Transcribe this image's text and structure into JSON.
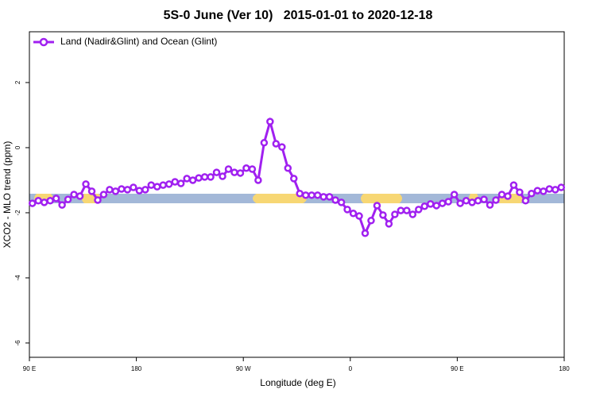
{
  "chart_data": {
    "type": "line",
    "title": "5S-0 June (Ver 10)   2015-01-01 to 2020-12-18",
    "x_label": "Longitude (deg E)",
    "y_label": "XCO2 - MLO trend (ppm)",
    "legend": "upper left",
    "x": [
      92.5,
      97.5,
      102.5,
      107.5,
      112.5,
      117.5,
      122.5,
      127.5,
      132.5,
      137.5,
      142.5,
      147.5,
      152.5,
      157.5,
      162.5,
      167.5,
      172.5,
      177.5,
      182.5,
      187.5,
      192.5,
      197.5,
      202.5,
      207.5,
      212.5,
      217.5,
      222.5,
      227.5,
      232.5,
      237.5,
      242.5,
      247.5,
      252.5,
      257.5,
      262.5,
      267.5,
      272.5,
      277.5,
      282.5,
      287.5,
      292.5,
      297.5,
      302.5,
      307.5,
      312.5,
      317.5,
      322.5,
      327.5,
      332.5,
      337.5,
      342.5,
      347.5,
      352.5,
      357.5,
      362.5,
      367.5,
      372.5,
      377.5,
      382.5,
      387.5,
      392.5,
      397.5,
      402.5,
      407.5,
      412.5,
      417.5,
      422.5,
      427.5,
      432.5,
      437.5,
      442.5,
      447.5,
      452.5,
      457.5,
      462.5,
      467.5,
      472.5,
      477.5,
      482.5,
      487.5,
      492.5,
      497.5,
      502.5,
      507.5,
      512.5,
      517.5,
      522.5,
      527.5,
      532.5,
      537.5
    ],
    "series": [
      {
        "name": "Land (Nadir&Glint) and Ocean (Glint)",
        "color": "#a020f0",
        "values": [
          -1.71,
          -1.63,
          -1.68,
          -1.63,
          -1.56,
          -1.76,
          -1.59,
          -1.44,
          -1.49,
          -1.12,
          -1.34,
          -1.61,
          -1.44,
          -1.29,
          -1.34,
          -1.27,
          -1.29,
          -1.22,
          -1.32,
          -1.29,
          -1.15,
          -1.2,
          -1.15,
          -1.12,
          -1.05,
          -1.1,
          -0.95,
          -1.0,
          -0.93,
          -0.9,
          -0.9,
          -0.76,
          -0.88,
          -0.66,
          -0.76,
          -0.78,
          -0.63,
          -0.66,
          -1.0,
          0.15,
          0.8,
          0.12,
          0.02,
          -0.63,
          -0.95,
          -1.41,
          -1.46,
          -1.46,
          -1.46,
          -1.51,
          -1.51,
          -1.61,
          -1.68,
          -1.9,
          -2.02,
          -2.1,
          -2.63,
          -2.24,
          -1.78,
          -2.07,
          -2.34,
          -2.05,
          -1.93,
          -1.93,
          -2.05,
          -1.9,
          -1.8,
          -1.73,
          -1.78,
          -1.71,
          -1.66,
          -1.44,
          -1.71,
          -1.63,
          -1.68,
          -1.63,
          -1.59,
          -1.76,
          -1.61,
          -1.44,
          -1.49,
          -1.15,
          -1.37,
          -1.63,
          -1.41,
          -1.32,
          -1.34,
          -1.27,
          -1.29,
          -1.22
        ]
      }
    ],
    "xlim": [
      90,
      540
    ],
    "xticks": [
      {
        "value": 90,
        "label": "90 E"
      },
      {
        "value": 180,
        "label": "180"
      },
      {
        "value": 270,
        "label": "90 W"
      },
      {
        "value": 360,
        "label": "0"
      },
      {
        "value": 450,
        "label": "90 E"
      },
      {
        "value": 540,
        "label": "180"
      }
    ],
    "ylim": [
      -6.44,
      3.56
    ],
    "yticks": [
      -6,
      -4,
      -2,
      0,
      2
    ]
  }
}
